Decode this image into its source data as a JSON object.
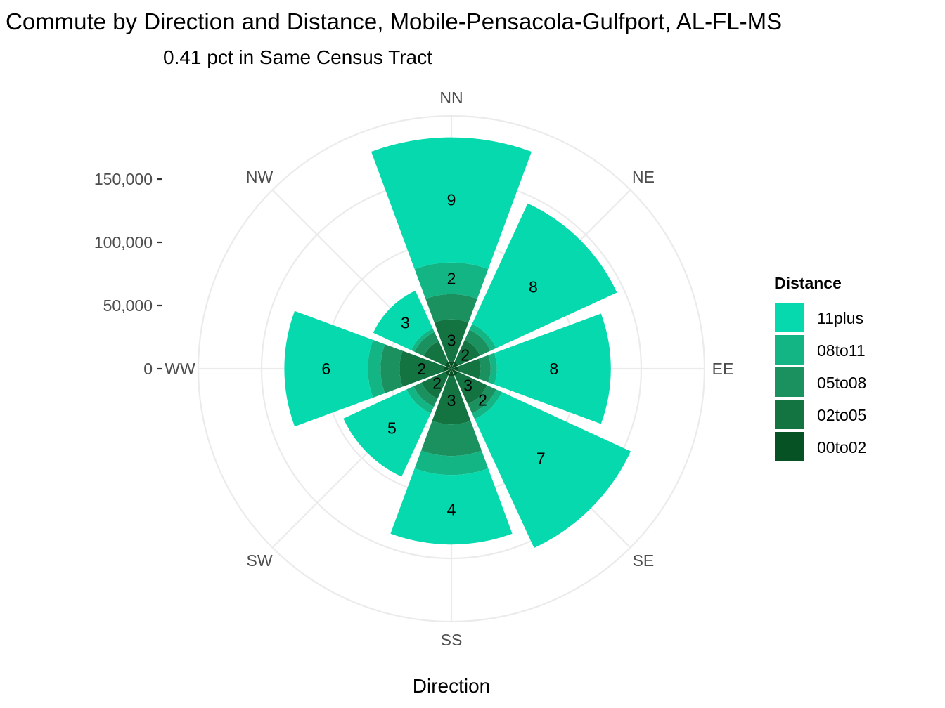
{
  "chart_data": {
    "type": "bar",
    "coord": "polar",
    "title": "Commute by Direction and Distance, Mobile-Pensacola-Gulfport, AL-FL-MS",
    "subtitle": "0.41 pct in Same Census Tract",
    "xlabel": "Direction",
    "directions": [
      "NN",
      "NE",
      "EE",
      "SE",
      "SS",
      "SW",
      "WW",
      "NW"
    ],
    "y_ticks": [
      0,
      50000,
      100000,
      150000
    ],
    "y_tick_labels": [
      "0",
      "50,000",
      "100,000",
      "150,000"
    ],
    "ylim": [
      0,
      200000
    ],
    "grid": true,
    "legend": {
      "title": "Distance",
      "position": "right",
      "entries": [
        "11plus",
        "08to11",
        "05to08",
        "02to05",
        "00to02"
      ]
    },
    "colors": {
      "11plus": "#06d9ae",
      "08to11": "#13b584",
      "05to08": "#1b9160",
      "02to05": "#137442",
      "00to02": "#065225"
    },
    "series": [
      {
        "name": "00to02",
        "values": [
          6000,
          6000,
          6000,
          6000,
          6000,
          6000,
          6000,
          6000
        ]
      },
      {
        "name": "02to05",
        "values": [
          33000,
          19000,
          17000,
          25000,
          38000,
          20000,
          35000,
          18000
        ]
      },
      {
        "name": "05to08",
        "values": [
          20000,
          9000,
          8000,
          8000,
          25000,
          7000,
          15000,
          8000
        ]
      },
      {
        "name": "08to11",
        "values": [
          25000,
          5000,
          5000,
          5000,
          15000,
          6000,
          10000,
          3000
        ]
      },
      {
        "name": "11plus",
        "values": [
          99000,
          105000,
          90000,
          112000,
          55000,
          55000,
          66000,
          33000
        ]
      }
    ],
    "segment_labels": [
      {
        "direction": "NN",
        "series": "11plus",
        "text": "9"
      },
      {
        "direction": "NN",
        "series": "08to11",
        "text": "2"
      },
      {
        "direction": "NN",
        "series": "02to05",
        "text": "3"
      },
      {
        "direction": "NE",
        "series": "11plus",
        "text": "8"
      },
      {
        "direction": "NE",
        "series": "02to05",
        "text": "2"
      },
      {
        "direction": "EE",
        "series": "11plus",
        "text": "8"
      },
      {
        "direction": "SE",
        "series": "11plus",
        "text": "7"
      },
      {
        "direction": "SE",
        "series": "05to08",
        "text": "2"
      },
      {
        "direction": "SE",
        "series": "02to05",
        "text": "3"
      },
      {
        "direction": "SS",
        "series": "11plus",
        "text": "4"
      },
      {
        "direction": "SS",
        "series": "02to05",
        "text": "3"
      },
      {
        "direction": "SW",
        "series": "11plus",
        "text": "5"
      },
      {
        "direction": "SW",
        "series": "02to05",
        "text": "2"
      },
      {
        "direction": "WW",
        "series": "11plus",
        "text": "6"
      },
      {
        "direction": "WW",
        "series": "02to05",
        "text": "2"
      },
      {
        "direction": "NW",
        "series": "11plus",
        "text": "3"
      }
    ]
  }
}
